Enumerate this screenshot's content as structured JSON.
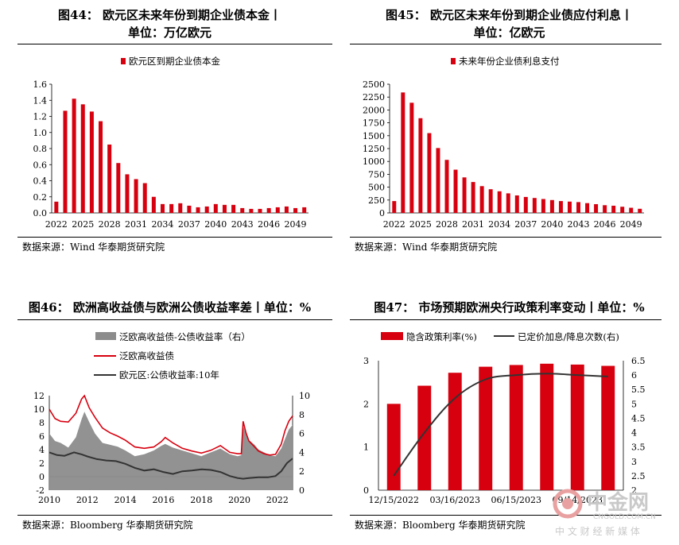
{
  "panels": [
    {
      "title_line1": "图44：  欧元区未来年份到期企业债本金丨",
      "title_line2": "单位：万亿欧元",
      "source": "数据来源：Wind  华泰期货研究院"
    },
    {
      "title_line1": "图45：  欧元区未来年份到期企业债应付利息丨",
      "title_line2": "单位：亿欧元",
      "source": "数据来源：Wind  华泰期货研究院"
    },
    {
      "title_line1": "图46：  欧洲高收益债与欧洲公债收益率差丨单位：%",
      "title_line2": "",
      "source": "数据来源：Bloomberg  华泰期货研究院"
    },
    {
      "title_line1": "图47：  市场预期欧洲央行政策利率变动丨单位：%",
      "title_line2": "",
      "source": "数据来源：Bloomberg  华泰期货研究院"
    }
  ],
  "watermark": {
    "brand": "中金网",
    "url": "CNGOLD.COM.CN",
    "slogan": "中 文 财 经 新 媒 体"
  },
  "colors": {
    "red": "#d7000f",
    "grey": "#8c8c8c",
    "dark": "#333333",
    "wm": "#c9c9c9",
    "wm_red": "#e9a0a0"
  },
  "chart_data": [
    {
      "type": "bar",
      "title": "",
      "legend": [
        "欧元区到期企业债本金"
      ],
      "legend_position": "top",
      "x": [
        2022,
        2023,
        2024,
        2025,
        2026,
        2027,
        2028,
        2029,
        2030,
        2031,
        2032,
        2033,
        2034,
        2035,
        2036,
        2037,
        2038,
        2039,
        2040,
        2041,
        2042,
        2043,
        2044,
        2045,
        2046,
        2047,
        2048,
        2049,
        2050
      ],
      "x_ticks": [
        "2022",
        "2025",
        "2028",
        "2031",
        "2034",
        "2037",
        "2040",
        "2043",
        "2046",
        "2049"
      ],
      "values": [
        0.14,
        1.27,
        1.42,
        1.35,
        1.26,
        1.14,
        0.85,
        0.62,
        0.48,
        0.42,
        0.37,
        0.2,
        0.11,
        0.11,
        0.12,
        0.09,
        0.07,
        0.08,
        0.11,
        0.1,
        0.1,
        0.06,
        0.05,
        0.05,
        0.06,
        0.07,
        0.08,
        0.06,
        0.07
      ],
      "ylim": [
        0,
        1.6
      ],
      "y_ticks": [
        "0.0",
        "0.2",
        "0.4",
        "0.6",
        "0.8",
        "1.0",
        "1.2",
        "1.4",
        "1.6"
      ],
      "grid": false
    },
    {
      "type": "bar",
      "title": "",
      "legend": [
        "未来年份企业债利息支付"
      ],
      "legend_position": "top",
      "x": [
        2022,
        2023,
        2024,
        2025,
        2026,
        2027,
        2028,
        2029,
        2030,
        2031,
        2032,
        2033,
        2034,
        2035,
        2036,
        2037,
        2038,
        2039,
        2040,
        2041,
        2042,
        2043,
        2044,
        2045,
        2046,
        2047,
        2048,
        2049,
        2050
      ],
      "x_ticks": [
        "2022",
        "2025",
        "2028",
        "2031",
        "2034",
        "2037",
        "2040",
        "2043",
        "2046",
        "2049"
      ],
      "values": [
        230,
        2340,
        2140,
        1840,
        1550,
        1260,
        1030,
        840,
        690,
        600,
        520,
        460,
        420,
        380,
        340,
        310,
        290,
        270,
        250,
        230,
        220,
        210,
        190,
        170,
        150,
        140,
        120,
        100,
        80
      ],
      "ylim": [
        0,
        2500
      ],
      "y_ticks": [
        "0",
        "250",
        "500",
        "750",
        "1000",
        "1250",
        "1500",
        "1750",
        "2000",
        "2250",
        "2500"
      ],
      "grid": false
    },
    {
      "type": "area",
      "title": "",
      "legend_position": "top-left",
      "x_ticks": [
        "2010",
        "2012",
        "2014",
        "2016",
        "2018",
        "2020",
        "2022"
      ],
      "xlim": [
        2010.0,
        2022.8
      ],
      "y_left": {
        "ylim": [
          -2,
          12
        ],
        "ticks": [
          "-2",
          "0",
          "2",
          "4",
          "6",
          "8",
          "10",
          "12"
        ]
      },
      "y_right": {
        "ylim": [
          0,
          10
        ],
        "ticks": [
          "0",
          "2",
          "4",
          "6",
          "8",
          "10"
        ]
      },
      "series": [
        {
          "name": "泛欧高收益债-公债收益率（右）",
          "axis": "right",
          "style": "area",
          "x": [
            2010.0,
            2010.3,
            2010.6,
            2011.0,
            2011.4,
            2011.7,
            2011.85,
            2012.1,
            2012.4,
            2012.8,
            2013.2,
            2013.6,
            2014.0,
            2014.5,
            2015.0,
            2015.5,
            2015.9,
            2016.1,
            2016.5,
            2017.0,
            2017.5,
            2018.0,
            2018.5,
            2019.0,
            2019.5,
            2019.9,
            2020.1,
            2020.2,
            2020.35,
            2020.5,
            2020.8,
            2021.0,
            2021.3,
            2021.6,
            2021.9,
            2022.2,
            2022.4,
            2022.6,
            2022.8
          ],
          "values": [
            6.0,
            5.2,
            5.0,
            4.5,
            5.6,
            7.5,
            8.3,
            7.2,
            6.0,
            5.0,
            4.8,
            4.6,
            4.2,
            3.6,
            3.8,
            4.2,
            4.7,
            4.9,
            4.5,
            4.2,
            3.9,
            3.6,
            4.0,
            4.4,
            3.8,
            3.6,
            3.7,
            6.8,
            6.0,
            5.3,
            4.8,
            4.3,
            4.0,
            3.7,
            3.6,
            4.4,
            5.4,
            6.4,
            6.9
          ]
        },
        {
          "name": "泛欧高收益债",
          "axis": "left",
          "style": "line",
          "x": [
            2010.0,
            2010.3,
            2010.6,
            2011.0,
            2011.4,
            2011.7,
            2011.85,
            2012.1,
            2012.4,
            2012.8,
            2013.2,
            2013.6,
            2014.0,
            2014.5,
            2015.0,
            2015.5,
            2015.9,
            2016.1,
            2016.5,
            2017.0,
            2017.5,
            2018.0,
            2018.5,
            2019.0,
            2019.5,
            2019.9,
            2020.1,
            2020.2,
            2020.35,
            2020.5,
            2020.8,
            2021.0,
            2021.3,
            2021.6,
            2021.9,
            2022.2,
            2022.4,
            2022.6,
            2022.8
          ],
          "values": [
            10.0,
            8.6,
            8.2,
            8.1,
            9.4,
            11.5,
            12.0,
            10.2,
            8.8,
            7.2,
            6.5,
            6.0,
            5.4,
            4.4,
            4.2,
            4.4,
            5.2,
            5.8,
            5.0,
            4.2,
            3.8,
            3.5,
            3.9,
            4.6,
            3.6,
            3.4,
            3.4,
            8.2,
            6.5,
            5.3,
            4.4,
            3.8,
            3.4,
            3.2,
            3.3,
            4.8,
            6.8,
            8.2,
            9.0
          ]
        },
        {
          "name": "欧元区:公债收益率:10年",
          "axis": "left",
          "style": "line",
          "x": [
            2010.0,
            2010.4,
            2010.8,
            2011.3,
            2011.7,
            2012.0,
            2012.5,
            2013.0,
            2013.5,
            2014.0,
            2014.5,
            2015.0,
            2015.5,
            2016.0,
            2016.5,
            2017.0,
            2017.5,
            2018.0,
            2018.5,
            2019.0,
            2019.5,
            2019.9,
            2020.2,
            2020.5,
            2021.0,
            2021.5,
            2021.9,
            2022.2,
            2022.5,
            2022.8
          ],
          "values": [
            3.6,
            3.2,
            3.1,
            3.6,
            3.3,
            3.0,
            2.6,
            2.4,
            2.3,
            1.9,
            1.3,
            0.9,
            1.1,
            0.7,
            0.4,
            0.8,
            0.9,
            1.1,
            1.0,
            0.7,
            0.1,
            -0.2,
            -0.3,
            -0.2,
            -0.1,
            -0.1,
            0.1,
            0.8,
            2.0,
            2.7
          ]
        }
      ]
    },
    {
      "type": "bar",
      "title": "",
      "legend_position": "top",
      "categories": [
        "12/15/2022",
        "02/02/2023",
        "03/16/2023",
        "05/04/2023",
        "06/15/2023",
        "07/27/2023",
        "09/14/2023",
        "10/26/2023"
      ],
      "x_ticks": [
        "12/15/2022",
        "03/16/2023",
        "06/15/2023",
        "09/14/2023"
      ],
      "y_left": {
        "ylim": [
          0,
          3
        ],
        "ticks": [
          "0",
          "1",
          "2",
          "3"
        ]
      },
      "y_right": {
        "ylim": [
          2,
          6.5
        ],
        "ticks": [
          "2",
          "2.5",
          "3",
          "3.5",
          "4",
          "4.5",
          "5",
          "5.5",
          "6",
          "6.5"
        ]
      },
      "series": [
        {
          "name": "隐含政策利率(%)",
          "axis": "left",
          "style": "bar",
          "values": [
            2.0,
            2.42,
            2.72,
            2.86,
            2.9,
            2.93,
            2.91,
            2.88
          ]
        },
        {
          "name": "已定价加息/降息次数(右)",
          "axis": "right",
          "style": "line",
          "values": [
            2.5,
            4.0,
            5.2,
            5.85,
            6.0,
            6.05,
            6.0,
            5.95
          ]
        }
      ]
    }
  ]
}
